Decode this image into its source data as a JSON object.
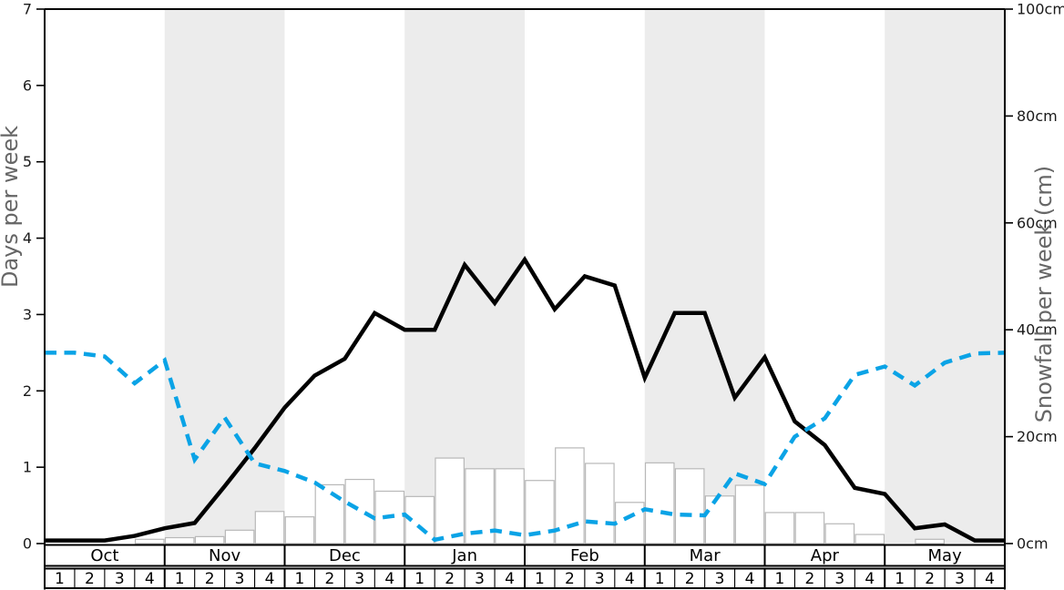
{
  "chart_data": {
    "type": "mixed",
    "title": "",
    "x_axis": {
      "months": [
        "Oct",
        "Nov",
        "Dec",
        "Jan",
        "Feb",
        "Mar",
        "Apr",
        "May"
      ],
      "weeks_per_month": [
        "1",
        "2",
        "3",
        "4"
      ],
      "shaded_months": [
        "Nov",
        "Jan",
        "Mar",
        "May"
      ]
    },
    "left_axis": {
      "label": "Days per week",
      "range": [
        0,
        7
      ],
      "ticks": [
        "0",
        "1",
        "2",
        "3",
        "4",
        "5",
        "6",
        "7"
      ]
    },
    "right_axis": {
      "label": "Snowfall per week (cm)",
      "range": [
        0,
        100
      ],
      "ticks": [
        "0cm",
        "20cm",
        "40cm",
        "60cm",
        "80cm",
        "100cm"
      ]
    },
    "series": [
      {
        "id": "snowfall-bars",
        "type": "bar",
        "axis": "right",
        "unit": "cm",
        "values": [
          0,
          0,
          0,
          0.8,
          1.1,
          1.3,
          2.5,
          6,
          5,
          11,
          12,
          9.8,
          8.8,
          16,
          14,
          14,
          11.8,
          17.9,
          15,
          7.7,
          15.1,
          14,
          8.9,
          10.9,
          5.8,
          5.8,
          3.7,
          1.7,
          0,
          0.8,
          0,
          0
        ]
      },
      {
        "id": "solid-black-line",
        "type": "line",
        "style": "solid",
        "axis": "left",
        "unit": "days",
        "values": [
          0.04,
          0.04,
          0.04,
          0.1,
          0.2,
          0.27,
          0.75,
          1.25,
          1.78,
          2.2,
          2.42,
          3.02,
          2.8,
          2.8,
          3.65,
          3.15,
          3.72,
          3.07,
          3.5,
          3.38,
          2.17,
          3.02,
          3.02,
          1.91,
          2.44,
          1.6,
          1.29,
          0.73,
          0.65,
          0.2,
          0.25,
          0.04,
          0.04
        ]
      },
      {
        "id": "dashed-blue-line",
        "type": "line",
        "style": "dashed",
        "axis": "left",
        "unit": "days",
        "values": [
          2.5,
          2.5,
          2.45,
          2.1,
          2.4,
          1.1,
          1.65,
          1.05,
          0.95,
          0.8,
          0.55,
          0.33,
          0.38,
          0.05,
          0.13,
          0.17,
          0.11,
          0.17,
          0.29,
          0.26,
          0.45,
          0.38,
          0.37,
          0.92,
          0.78,
          1.4,
          1.64,
          2.21,
          2.32,
          2.07,
          2.37,
          2.49,
          2.5
        ]
      }
    ],
    "grid": "off",
    "legend": "none"
  },
  "colors": {
    "solid_line": "#000000",
    "dashed_line": "#0aa3e6",
    "month_band": "#ececec",
    "bar_fill": "#ffffff",
    "bar_border": "#b8b8b8",
    "axis": "#000000",
    "axis_title": "#666666",
    "tick_label": "#1a1a1a"
  }
}
